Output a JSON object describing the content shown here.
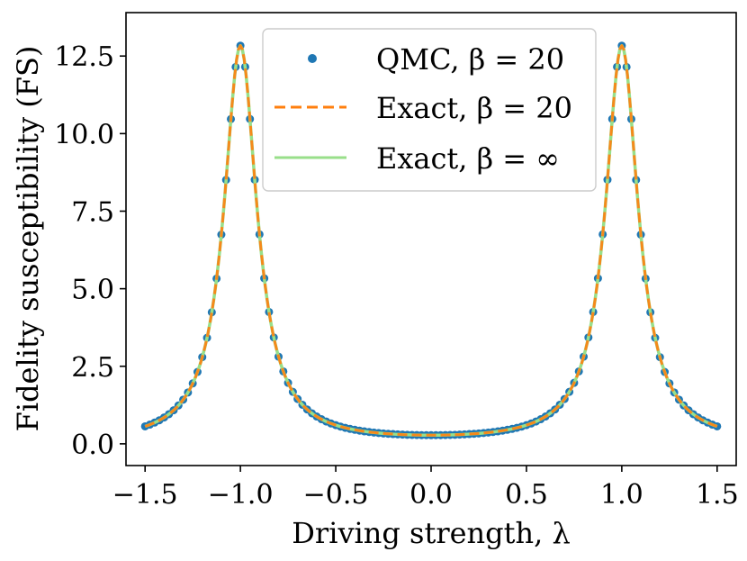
{
  "chart_data": {
    "type": "line",
    "title": "",
    "xlabel": "Driving strength, λ",
    "ylabel": "Fidelity susceptibility (FS)",
    "xlim": [
      -1.6,
      1.6
    ],
    "ylim": [
      -0.7,
      13.9
    ],
    "x_ticks": [
      -1.5,
      -1.0,
      -0.5,
      0.0,
      0.5,
      1.0,
      1.5
    ],
    "x_tick_labels": [
      "−1.5",
      "−1.0",
      "−0.5",
      "0.0",
      "0.5",
      "1.0",
      "1.5"
    ],
    "y_ticks": [
      0.0,
      2.5,
      5.0,
      7.5,
      10.0,
      12.5
    ],
    "y_tick_labels": [
      "0.0",
      "2.5",
      "5.0",
      "7.5",
      "10.0",
      "12.5"
    ],
    "grid": false,
    "legend_position": "top-center",
    "model": {
      "peak_positions": [
        -1.0,
        1.0
      ],
      "peak_height": 12.8,
      "half_width": 0.105
    },
    "series": [
      {
        "name": "QMC, β = 20",
        "style": "markers",
        "color": "#1f77b4",
        "x_range": [
          -1.5,
          1.5
        ],
        "n_points": 121
      },
      {
        "name": "Exact, β = 20",
        "style": "dashed",
        "color": "#ff7f0e",
        "x_range": [
          -1.5,
          1.5
        ],
        "n_points": 301
      },
      {
        "name": "Exact, β = ∞",
        "style": "solid",
        "color": "#98df8a",
        "x_range": [
          -1.5,
          1.5
        ],
        "n_points": 301
      }
    ]
  }
}
